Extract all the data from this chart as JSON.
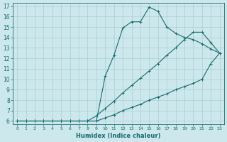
{
  "xlabel": "Humidex (Indice chaleur)",
  "bg_color": "#cce8ec",
  "grid_color": "#aacdd4",
  "line_color": "#1a6b6b",
  "xlim": [
    -0.5,
    23.5
  ],
  "ylim": [
    5.7,
    17.3
  ],
  "xticks": [
    0,
    1,
    2,
    3,
    4,
    5,
    6,
    7,
    8,
    9,
    10,
    11,
    12,
    13,
    14,
    15,
    16,
    17,
    18,
    19,
    20,
    21,
    22,
    23
  ],
  "yticks": [
    6,
    7,
    8,
    9,
    10,
    11,
    12,
    13,
    14,
    15,
    16,
    17
  ],
  "series": [
    {
      "x": [
        0,
        1,
        2,
        3,
        4,
        5,
        6,
        7,
        8,
        9,
        10,
        11,
        12,
        13,
        14,
        15,
        16,
        17,
        18,
        19,
        20,
        21,
        22,
        23
      ],
      "y": [
        6,
        6,
        6,
        6,
        6,
        6,
        6,
        6,
        6,
        6,
        10.3,
        12.3,
        14.9,
        15.5,
        15.5,
        16.9,
        16.5,
        15.0,
        14.4,
        14.0,
        13.8,
        13.4,
        12.9,
        12.5
      ]
    },
    {
      "x": [
        0,
        1,
        2,
        3,
        4,
        5,
        6,
        7,
        8,
        9,
        10,
        11,
        12,
        13,
        14,
        15,
        16,
        17,
        18,
        19,
        20,
        21,
        22,
        23
      ],
      "y": [
        6,
        6,
        6,
        6,
        6,
        6,
        6,
        6,
        6,
        6.5,
        7.2,
        7.9,
        8.7,
        9.4,
        10.1,
        10.8,
        11.5,
        12.3,
        13.0,
        13.8,
        14.5,
        14.5,
        13.5,
        12.5
      ]
    },
    {
      "x": [
        0,
        1,
        2,
        3,
        4,
        5,
        6,
        7,
        8,
        9,
        10,
        11,
        12,
        13,
        14,
        15,
        16,
        17,
        18,
        19,
        20,
        21,
        22,
        23
      ],
      "y": [
        6,
        6,
        6,
        6,
        6,
        6,
        6,
        6,
        6,
        6,
        6.3,
        6.6,
        7.0,
        7.3,
        7.6,
        8.0,
        8.3,
        8.6,
        9.0,
        9.3,
        9.6,
        10.0,
        11.5,
        12.5
      ]
    }
  ]
}
